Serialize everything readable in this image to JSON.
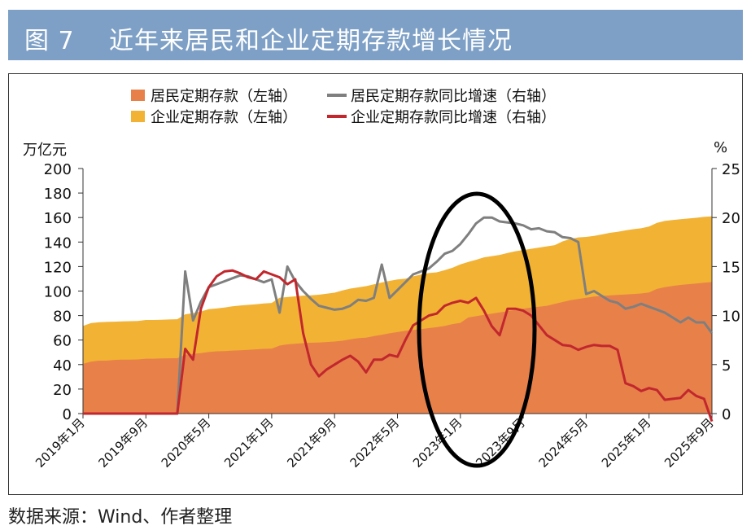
{
  "header": {
    "figure_no": "图 7",
    "title": "近年来居民和企业定期存款增长情况"
  },
  "source": "数据来源：Wind、作者整理",
  "colors": {
    "title_bg": "#7ea0c6",
    "household_deposit": "#e8804a",
    "corporate_deposit": "#f2b233",
    "household_growth": "#7f7f7f",
    "corporate_growth": "#c1272d"
  },
  "chart_data": {
    "type": "area+line",
    "left_unit": "万亿元",
    "right_unit": "%",
    "ylim_left": [
      0,
      200
    ],
    "ylim_right": [
      0,
      25
    ],
    "yticks_left": [
      0,
      20,
      40,
      60,
      80,
      100,
      120,
      140,
      160,
      180,
      200
    ],
    "yticks_right": [
      0,
      5,
      10,
      15,
      20,
      25
    ],
    "x_tick_labels": [
      "2019年1月",
      "2019年9月",
      "2020年5月",
      "2021年1月",
      "2021年9月",
      "2022年5月",
      "2023年1月",
      "2023年9月",
      "2024年5月",
      "2025年1月",
      "2025年9月"
    ],
    "x_tick_index": [
      0,
      8,
      16,
      24,
      32,
      40,
      48,
      56,
      64,
      72,
      80
    ],
    "months": 81,
    "legend": [
      {
        "label": "居民定期存款（左轴）",
        "kind": "area",
        "series": "household_deposit"
      },
      {
        "label": "居民定期存款同比增速（右轴）",
        "kind": "line",
        "series": "household_growth"
      },
      {
        "label": "企业定期存款（左轴）",
        "kind": "area",
        "series": "corporate_deposit"
      },
      {
        "label": "企业定期存款同比增速（右轴）",
        "kind": "line",
        "series": "corporate_growth"
      }
    ],
    "annotation": "ellipse highlighting 2022年末—2023年",
    "series": [
      {
        "name": "居民定期存款",
        "axis": "left",
        "kind": "stacked_area_bottom",
        "values": [
          40.6,
          42.4,
          43.2,
          43.2,
          43.8,
          44.0,
          44.0,
          44.2,
          44.8,
          44.8,
          45.0,
          45.1,
          45.2,
          48.0,
          48.8,
          49.4,
          50.2,
          50.8,
          51.0,
          51.4,
          51.6,
          52.0,
          52.4,
          52.8,
          53.0,
          55.5,
          56.5,
          57.0,
          57.5,
          57.8,
          58.0,
          58.4,
          58.8,
          59.5,
          60.5,
          61.5,
          62.0,
          63.2,
          64.3,
          65.5,
          66.5,
          67.5,
          68.2,
          69.0,
          69.8,
          70.5,
          71.5,
          73.0,
          74.0,
          78.4,
          79.5,
          80.5,
          81.5,
          82.5,
          83.5,
          84.5,
          85.5,
          86.5,
          87.2,
          88.0,
          89.5,
          91.0,
          92.5,
          93.5,
          94.5,
          95.5,
          96.0,
          96.4,
          96.8,
          97.2,
          97.6,
          98.0,
          98.8,
          101.7,
          103.2,
          104.2,
          105.0,
          105.6,
          106.2,
          106.8,
          107.3
        ]
      },
      {
        "name": "企业定期存款",
        "axis": "left",
        "kind": "stacked_area_top",
        "values": [
          71.5,
          73.8,
          74.5,
          74.8,
          75.0,
          75.2,
          75.4,
          75.6,
          76.4,
          76.4,
          76.6,
          76.8,
          77.0,
          81.0,
          82.0,
          83.3,
          85.2,
          85.8,
          86.5,
          87.6,
          88.2,
          88.7,
          89.2,
          89.9,
          90.3,
          94.5,
          95.1,
          95.7,
          96.3,
          96.5,
          97.0,
          97.8,
          98.7,
          100.5,
          102.0,
          103.0,
          104.0,
          105.5,
          107.0,
          108.3,
          109.5,
          110.0,
          112.0,
          113.5,
          114.7,
          115.3,
          117.0,
          119.0,
          121.8,
          123.8,
          125.5,
          127.5,
          128.5,
          129.5,
          131.0,
          132.5,
          133.5,
          134.5,
          135.5,
          136.5,
          137.5,
          140.5,
          142.5,
          143.8,
          144.2,
          145.0,
          146.2,
          147.5,
          148.3,
          149.5,
          150.5,
          151.2,
          152.6,
          155.7,
          157.2,
          158.0,
          158.6,
          159.2,
          159.8,
          160.5,
          161.0
        ]
      },
      {
        "name": "居民定期存款同比增速",
        "axis": "right",
        "kind": "line",
        "values": [
          0,
          0,
          0,
          0,
          0,
          0,
          0,
          0,
          0,
          0,
          0,
          0,
          0,
          14.5,
          9.5,
          11.4,
          12.9,
          13.2,
          13.5,
          13.8,
          14.1,
          14.0,
          13.7,
          13.4,
          13.7,
          10.3,
          15.0,
          13.5,
          12.5,
          11.7,
          11.0,
          10.8,
          10.6,
          10.7,
          11.0,
          11.6,
          11.5,
          11.8,
          15.2,
          11.8,
          12.6,
          13.4,
          14.2,
          14.5,
          14.8,
          15.5,
          16.3,
          16.6,
          17.3,
          18.3,
          19.4,
          20.0,
          20.0,
          19.6,
          19.5,
          19.4,
          19.2,
          18.8,
          18.9,
          18.6,
          18.5,
          18.0,
          17.9,
          17.5,
          12.2,
          12.5,
          12.0,
          11.5,
          11.3,
          10.7,
          10.9,
          11.2,
          10.9,
          10.6,
          10.3,
          9.8,
          9.3,
          9.8,
          9.3,
          9.3,
          8.2
        ]
      },
      {
        "name": "企业定期存款同比增速",
        "axis": "right",
        "kind": "line",
        "values": [
          0,
          0,
          0,
          0,
          0,
          0,
          0,
          0,
          0,
          0,
          0,
          0,
          0,
          6.6,
          5.5,
          10.7,
          12.9,
          14.0,
          14.5,
          14.6,
          14.3,
          13.9,
          13.7,
          14.5,
          14.2,
          13.9,
          13.2,
          13.7,
          8.2,
          5.0,
          3.8,
          4.5,
          5.0,
          5.5,
          5.9,
          5.3,
          4.2,
          5.5,
          5.5,
          6.0,
          5.8,
          7.5,
          9.0,
          9.5,
          10.0,
          10.2,
          11.0,
          11.3,
          11.5,
          11.3,
          11.8,
          10.5,
          8.9,
          8.0,
          10.7,
          10.7,
          10.5,
          10.0,
          9.0,
          8.0,
          7.5,
          7.0,
          6.9,
          6.5,
          6.8,
          7.0,
          6.9,
          6.9,
          6.5,
          3.1,
          2.8,
          2.3,
          2.6,
          2.4,
          1.4,
          1.5,
          1.6,
          2.4,
          1.8,
          1.5,
          -0.8
        ]
      }
    ]
  }
}
